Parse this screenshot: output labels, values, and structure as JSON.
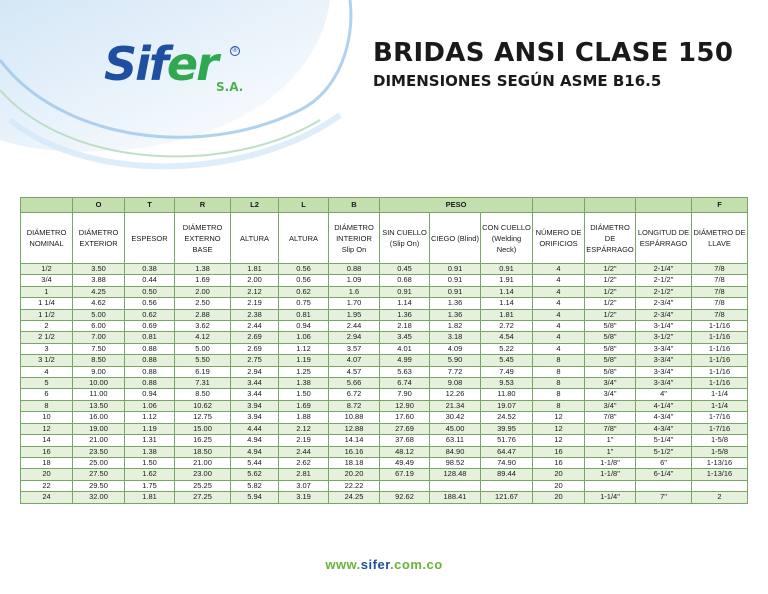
{
  "brand": {
    "logo_main": "Sif",
    "logo_accent": "er",
    "logo_suffix": "S.A.",
    "registered": "®"
  },
  "heading": {
    "title": "BRIDAS ANSI CLASE 150",
    "subtitle": "DIMENSIONES SEGÚN ASME B16.5"
  },
  "table": {
    "letters": [
      "",
      "O",
      "T",
      "R",
      "L2",
      "L",
      "B",
      "PESO",
      "",
      "",
      "",
      "F"
    ],
    "headers": [
      "DIÁMETRO NOMINAL",
      "DIÁMETRO EXTERIOR",
      "ESPESOR",
      "DIÁMETRO EXTERNO BASE",
      "ALTURA",
      "ALTURA",
      "DIÁMETRO INTERIOR Slip On",
      "SIN CUELLO (Slip On)",
      "CIEGO (Blind)",
      "CON CUELLO (Welding Neck)",
      "NÚMERO DE ORIFICIOS",
      "DIÁMETRO DE ESPÁRRAGO",
      "LONGITUD DE ESPÁRRAGO",
      "DIÁMETRO DE LLAVE"
    ],
    "rows": [
      [
        "1/2",
        "3.50",
        "0.38",
        "1.38",
        "1.81",
        "0.56",
        "0.88",
        "0.45",
        "0.91",
        "0.91",
        "4",
        "1/2\"",
        "2-1/4\"",
        "7/8"
      ],
      [
        "3/4",
        "3.88",
        "0.44",
        "1.69",
        "2.00",
        "0.56",
        "1.09",
        "0.68",
        "0.91",
        "1.91",
        "4",
        "1/2\"",
        "2-1/2\"",
        "7/8"
      ],
      [
        "1",
        "4.25",
        "0.50",
        "2.00",
        "2.12",
        "0.62",
        "1.6",
        "0.91",
        "0.91",
        "1.14",
        "4",
        "1/2\"",
        "2-1/2\"",
        "7/8"
      ],
      [
        "1 1/4",
        "4.62",
        "0.56",
        "2.50",
        "2.19",
        "0.75",
        "1.70",
        "1.14",
        "1.36",
        "1.14",
        "4",
        "1/2\"",
        "2-3/4\"",
        "7/8"
      ],
      [
        "1 1/2",
        "5.00",
        "0.62",
        "2.88",
        "2.38",
        "0.81",
        "1.95",
        "1.36",
        "1.36",
        "1.81",
        "4",
        "1/2\"",
        "2-3/4\"",
        "7/8"
      ],
      [
        "2",
        "6.00",
        "0.69",
        "3.62",
        "2.44",
        "0.94",
        "2.44",
        "2.18",
        "1.82",
        "2.72",
        "4",
        "5/8\"",
        "3-1/4\"",
        "1-1/16"
      ],
      [
        "2 1/2",
        "7.00",
        "0.81",
        "4.12",
        "2.69",
        "1.06",
        "2.94",
        "3.45",
        "3.18",
        "4.54",
        "4",
        "5/8\"",
        "3-1/2\"",
        "1-1/16"
      ],
      [
        "3",
        "7.50",
        "0.88",
        "5.00",
        "2.69",
        "1.12",
        "3.57",
        "4.01",
        "4.09",
        "5.22",
        "4",
        "5/8\"",
        "3-3/4\"",
        "1-1/16"
      ],
      [
        "3 1/2",
        "8.50",
        "0.88",
        "5.50",
        "2.75",
        "1.19",
        "4.07",
        "4.99",
        "5.90",
        "5.45",
        "8",
        "5/8\"",
        "3-3/4\"",
        "1-1/16"
      ],
      [
        "4",
        "9.00",
        "0.88",
        "6.19",
        "2.94",
        "1.25",
        "4.57",
        "5.63",
        "7.72",
        "7.49",
        "8",
        "5/8\"",
        "3-3/4\"",
        "1-1/16"
      ],
      [
        "5",
        "10.00",
        "0.88",
        "7.31",
        "3.44",
        "1.38",
        "5.66",
        "6.74",
        "9.08",
        "9.53",
        "8",
        "3/4\"",
        "3-3/4\"",
        "1-1/16"
      ],
      [
        "6",
        "11.00",
        "0.94",
        "8.50",
        "3.44",
        "1.50",
        "6.72",
        "7.90",
        "12.26",
        "11.80",
        "8",
        "3/4\"",
        "4\"",
        "1-1/4"
      ],
      [
        "8",
        "13.50",
        "1.06",
        "10.62",
        "3.94",
        "1.69",
        "8.72",
        "12.90",
        "21.34",
        "19.07",
        "8",
        "3/4\"",
        "4-1/4\"",
        "1-1/4"
      ],
      [
        "10",
        "16.00",
        "1.12",
        "12.75",
        "3.94",
        "1.88",
        "10.88",
        "17.60",
        "30.42",
        "24.52",
        "12",
        "7/8\"",
        "4-3/4\"",
        "1-7/16"
      ],
      [
        "12",
        "19.00",
        "1.19",
        "15.00",
        "4.44",
        "2.12",
        "12.88",
        "27.69",
        "45.00",
        "39.95",
        "12",
        "7/8\"",
        "4-3/4\"",
        "1-7/16"
      ],
      [
        "14",
        "21.00",
        "1.31",
        "16.25",
        "4.94",
        "2.19",
        "14.14",
        "37.68",
        "63.11",
        "51.76",
        "12",
        "1\"",
        "5-1/4\"",
        "1-5/8"
      ],
      [
        "16",
        "23.50",
        "1.38",
        "18.50",
        "4.94",
        "2.44",
        "16.16",
        "48.12",
        "84.90",
        "64.47",
        "16",
        "1\"",
        "5-1/2\"",
        "1-5/8"
      ],
      [
        "18",
        "25.00",
        "1.50",
        "21.00",
        "5.44",
        "2.62",
        "18.18",
        "49.49",
        "98.52",
        "74.90",
        "16",
        "1-1/8\"",
        "6\"",
        "1-13/16"
      ],
      [
        "20",
        "27.50",
        "1.62",
        "23.00",
        "5.62",
        "2.81",
        "20.20",
        "67.19",
        "128.48",
        "89.44",
        "20",
        "1-1/8\"",
        "6-1/4\"",
        "1-13/16"
      ],
      [
        "22",
        "29.50",
        "1.75",
        "25.25",
        "5.82",
        "3.07",
        "22.22",
        "",
        "",
        "",
        "20",
        "",
        "",
        ""
      ],
      [
        "24",
        "32.00",
        "1.81",
        "27.25",
        "5.94",
        "3.19",
        "24.25",
        "92.62",
        "188.41",
        "121.67",
        "20",
        "1-1/4\"",
        "7\"",
        "2"
      ]
    ]
  },
  "footer": {
    "website_prefix": "www.",
    "website_brand": "sifer",
    "website_suffix": ".com.co"
  },
  "colors": {
    "brand_blue": "#1e4fa0",
    "brand_green": "#2fa84f",
    "table_header_green": "#c3dfad",
    "table_row_green": "#e6f1dc"
  }
}
